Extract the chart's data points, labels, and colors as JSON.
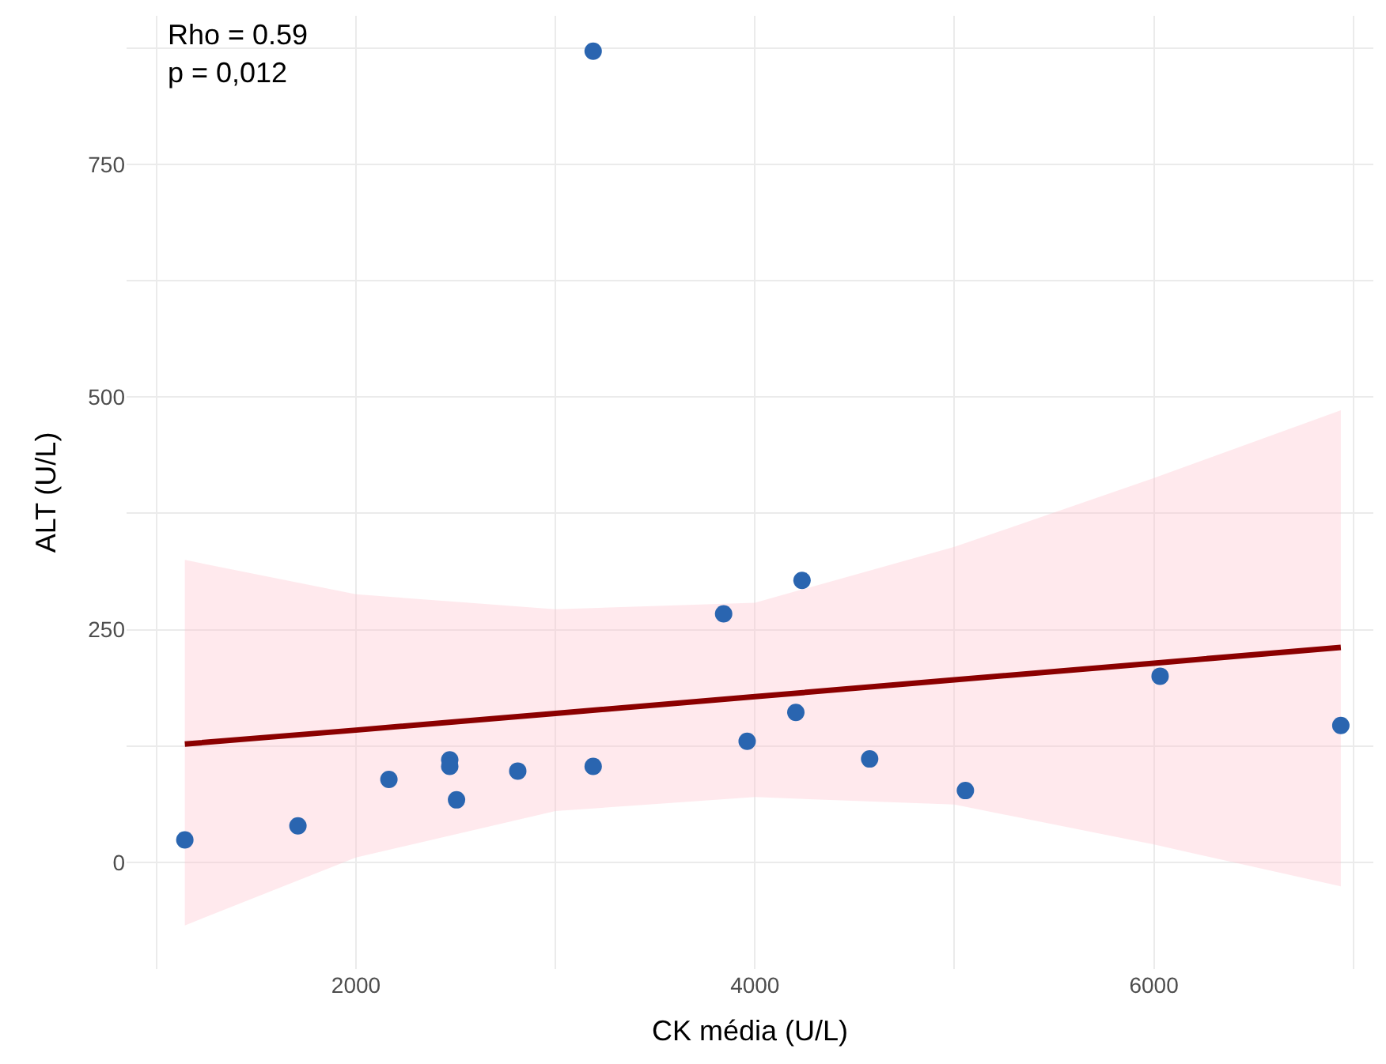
{
  "chart_data": {
    "type": "scatter",
    "xlabel": "CK média (U/L)",
    "ylabel": "ALT (U/L)",
    "xlim": [
      850,
      7100
    ],
    "ylim": [
      -115,
      910
    ],
    "xticks": [
      {
        "value": 1000,
        "label": null
      },
      2000,
      {
        "value": 3000,
        "label": null
      },
      4000,
      {
        "value": 5000,
        "label": null
      },
      6000,
      {
        "value": 7000,
        "label": null
      }
    ],
    "yticks": [
      0,
      {
        "value": 125,
        "label": null
      },
      250,
      {
        "value": 375,
        "label": null
      },
      500,
      {
        "value": 625,
        "label": null
      },
      750,
      {
        "value": 875,
        "label": null
      }
    ],
    "grid": true,
    "marker": "circle",
    "series": [
      {
        "color": "#2a65b0",
        "x": [
          1142,
          1709,
          2165,
          2470,
          2470,
          2504,
          2811,
          3189,
          3189,
          3843,
          3961,
          4205,
          4236,
          4575,
          5055,
          6031,
          6937
        ],
        "values": [
          24,
          39,
          89,
          110,
          103,
          67,
          98,
          103,
          872,
          267,
          130,
          161,
          303,
          111,
          77,
          200,
          147
        ]
      },
      {
        "type": "line",
        "marker": "none",
        "color": "#8b0000",
        "x": [
          1142,
          2000,
          3000,
          4000,
          5000,
          6000,
          6937
        ],
        "values": [
          127,
          142,
          160,
          178,
          196,
          214,
          231
        ],
        "lower": [
          -68,
          5,
          55,
          70,
          62,
          19,
          -26
        ],
        "upper": [
          325,
          288,
          272,
          279,
          339,
          413,
          486
        ]
      }
    ],
    "annotations": [
      "Rho = 0.59",
      "p = 0,012"
    ]
  }
}
